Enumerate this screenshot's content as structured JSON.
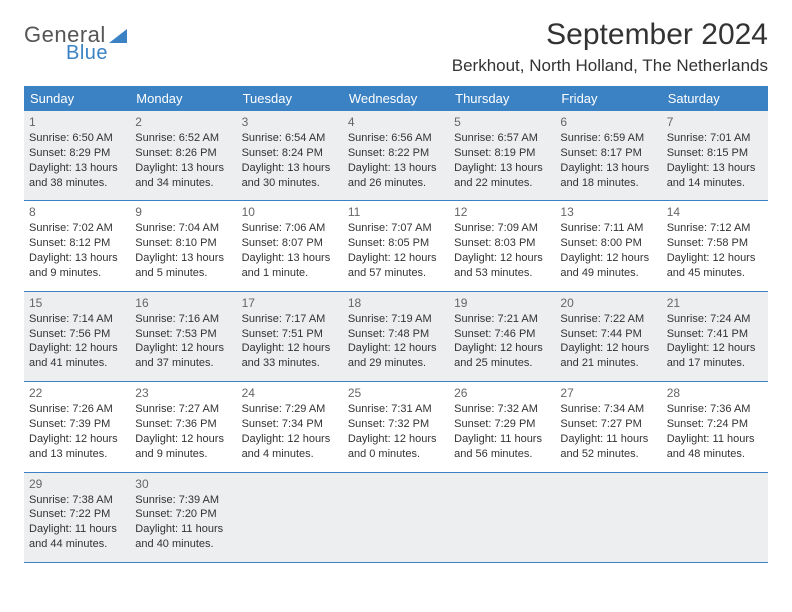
{
  "logo": {
    "general": "General",
    "blue": "Blue"
  },
  "title": "September 2024",
  "location": "Berkhout, North Holland, The Netherlands",
  "colors": {
    "header_bg": "#3b82c4",
    "header_text": "#ffffff",
    "shaded_bg": "#eceeef",
    "text": "#333333",
    "daynum": "#666666",
    "rule": "#3b82c4"
  },
  "weekdays": [
    "Sunday",
    "Monday",
    "Tuesday",
    "Wednesday",
    "Thursday",
    "Friday",
    "Saturday"
  ],
  "weeks": [
    {
      "shaded": true,
      "days": [
        {
          "n": "1",
          "sr": "6:50 AM",
          "ss": "8:29 PM",
          "dl": "13 hours and 38 minutes."
        },
        {
          "n": "2",
          "sr": "6:52 AM",
          "ss": "8:26 PM",
          "dl": "13 hours and 34 minutes."
        },
        {
          "n": "3",
          "sr": "6:54 AM",
          "ss": "8:24 PM",
          "dl": "13 hours and 30 minutes."
        },
        {
          "n": "4",
          "sr": "6:56 AM",
          "ss": "8:22 PM",
          "dl": "13 hours and 26 minutes."
        },
        {
          "n": "5",
          "sr": "6:57 AM",
          "ss": "8:19 PM",
          "dl": "13 hours and 22 minutes."
        },
        {
          "n": "6",
          "sr": "6:59 AM",
          "ss": "8:17 PM",
          "dl": "13 hours and 18 minutes."
        },
        {
          "n": "7",
          "sr": "7:01 AM",
          "ss": "8:15 PM",
          "dl": "13 hours and 14 minutes."
        }
      ]
    },
    {
      "shaded": false,
      "days": [
        {
          "n": "8",
          "sr": "7:02 AM",
          "ss": "8:12 PM",
          "dl": "13 hours and 9 minutes."
        },
        {
          "n": "9",
          "sr": "7:04 AM",
          "ss": "8:10 PM",
          "dl": "13 hours and 5 minutes."
        },
        {
          "n": "10",
          "sr": "7:06 AM",
          "ss": "8:07 PM",
          "dl": "13 hours and 1 minute."
        },
        {
          "n": "11",
          "sr": "7:07 AM",
          "ss": "8:05 PM",
          "dl": "12 hours and 57 minutes."
        },
        {
          "n": "12",
          "sr": "7:09 AM",
          "ss": "8:03 PM",
          "dl": "12 hours and 53 minutes."
        },
        {
          "n": "13",
          "sr": "7:11 AM",
          "ss": "8:00 PM",
          "dl": "12 hours and 49 minutes."
        },
        {
          "n": "14",
          "sr": "7:12 AM",
          "ss": "7:58 PM",
          "dl": "12 hours and 45 minutes."
        }
      ]
    },
    {
      "shaded": true,
      "days": [
        {
          "n": "15",
          "sr": "7:14 AM",
          "ss": "7:56 PM",
          "dl": "12 hours and 41 minutes."
        },
        {
          "n": "16",
          "sr": "7:16 AM",
          "ss": "7:53 PM",
          "dl": "12 hours and 37 minutes."
        },
        {
          "n": "17",
          "sr": "7:17 AM",
          "ss": "7:51 PM",
          "dl": "12 hours and 33 minutes."
        },
        {
          "n": "18",
          "sr": "7:19 AM",
          "ss": "7:48 PM",
          "dl": "12 hours and 29 minutes."
        },
        {
          "n": "19",
          "sr": "7:21 AM",
          "ss": "7:46 PM",
          "dl": "12 hours and 25 minutes."
        },
        {
          "n": "20",
          "sr": "7:22 AM",
          "ss": "7:44 PM",
          "dl": "12 hours and 21 minutes."
        },
        {
          "n": "21",
          "sr": "7:24 AM",
          "ss": "7:41 PM",
          "dl": "12 hours and 17 minutes."
        }
      ]
    },
    {
      "shaded": false,
      "days": [
        {
          "n": "22",
          "sr": "7:26 AM",
          "ss": "7:39 PM",
          "dl": "12 hours and 13 minutes."
        },
        {
          "n": "23",
          "sr": "7:27 AM",
          "ss": "7:36 PM",
          "dl": "12 hours and 9 minutes."
        },
        {
          "n": "24",
          "sr": "7:29 AM",
          "ss": "7:34 PM",
          "dl": "12 hours and 4 minutes."
        },
        {
          "n": "25",
          "sr": "7:31 AM",
          "ss": "7:32 PM",
          "dl": "12 hours and 0 minutes."
        },
        {
          "n": "26",
          "sr": "7:32 AM",
          "ss": "7:29 PM",
          "dl": "11 hours and 56 minutes."
        },
        {
          "n": "27",
          "sr": "7:34 AM",
          "ss": "7:27 PM",
          "dl": "11 hours and 52 minutes."
        },
        {
          "n": "28",
          "sr": "7:36 AM",
          "ss": "7:24 PM",
          "dl": "11 hours and 48 minutes."
        }
      ]
    },
    {
      "shaded": true,
      "days": [
        {
          "n": "29",
          "sr": "7:38 AM",
          "ss": "7:22 PM",
          "dl": "11 hours and 44 minutes."
        },
        {
          "n": "30",
          "sr": "7:39 AM",
          "ss": "7:20 PM",
          "dl": "11 hours and 40 minutes."
        },
        {
          "n": "",
          "sr": "",
          "ss": "",
          "dl": ""
        },
        {
          "n": "",
          "sr": "",
          "ss": "",
          "dl": ""
        },
        {
          "n": "",
          "sr": "",
          "ss": "",
          "dl": ""
        },
        {
          "n": "",
          "sr": "",
          "ss": "",
          "dl": ""
        },
        {
          "n": "",
          "sr": "",
          "ss": "",
          "dl": ""
        }
      ]
    }
  ],
  "labels": {
    "sunrise": "Sunrise: ",
    "sunset": "Sunset: ",
    "daylight": "Daylight: "
  }
}
